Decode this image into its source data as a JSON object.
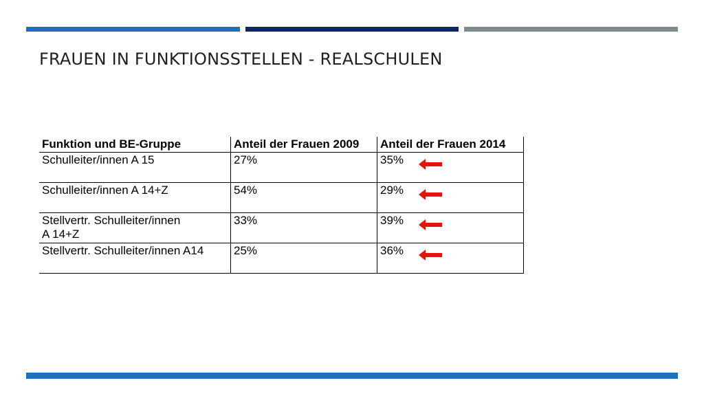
{
  "colors": {
    "bar_blue": "#1f6fbf",
    "bar_navy": "#10285f",
    "bar_gray": "#7f8c8d",
    "footer": "#1f6fbf",
    "arrow": "#e8120c"
  },
  "title": "FRAUEN IN FUNKTIONSSTELLEN - REALSCHULEN",
  "table": {
    "headers": [
      "Funktion und BE-Gruppe",
      "Anteil der Frauen 2009",
      "Anteil der Frauen 2014"
    ],
    "rows": [
      {
        "funktion": "Schulleiter/innen A 15",
        "anteil_2009": "27%",
        "anteil_2014": "35%",
        "arrow_icon": "left-arrow-icon"
      },
      {
        "funktion": "Schulleiter/innen A 14+Z",
        "anteil_2009": "54%",
        "anteil_2014": "29%",
        "arrow_icon": "left-arrow-icon"
      },
      {
        "funktion_line1": "Stellvertr. Schulleiter/innen",
        "funktion_line2": "A 14+Z",
        "anteil_2009": "33%",
        "anteil_2014": "39%",
        "arrow_icon": "left-arrow-icon"
      },
      {
        "funktion": "Stellvertr. Schulleiter/innen A14",
        "anteil_2009": "25%",
        "anteil_2014": "36%",
        "arrow_icon": "left-arrow-icon"
      }
    ]
  }
}
